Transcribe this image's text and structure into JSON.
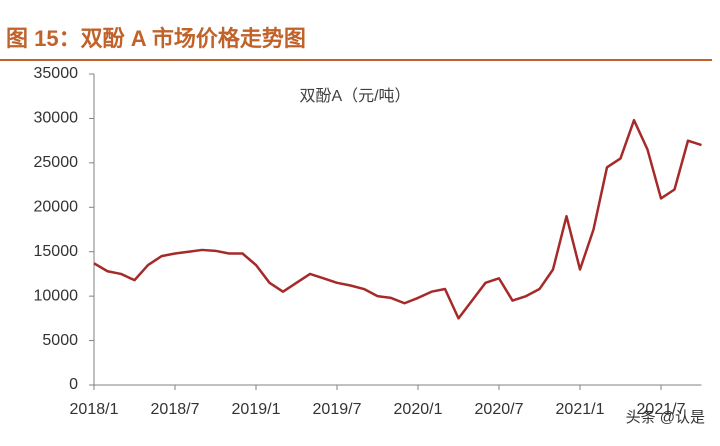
{
  "chart_data": {
    "type": "line",
    "title": "图 15：双酚 A 市场价格走势图",
    "subtitle": "双酚A（元/吨）",
    "watermark": "头条 @认是",
    "x": [
      "2018/1",
      "2018/2",
      "2018/3",
      "2018/4",
      "2018/5",
      "2018/6",
      "2018/7",
      "2018/8",
      "2018/9",
      "2018/10",
      "2018/11",
      "2018/12",
      "2019/1",
      "2019/2",
      "2019/3",
      "2019/4",
      "2019/5",
      "2019/6",
      "2019/7",
      "2019/8",
      "2019/9",
      "2019/10",
      "2019/11",
      "2019/12",
      "2020/1",
      "2020/2",
      "2020/3",
      "2020/4",
      "2020/5",
      "2020/6",
      "2020/7",
      "2020/8",
      "2020/9",
      "2020/10",
      "2020/11",
      "2020/12",
      "2021/1",
      "2021/2",
      "2021/3",
      "2021/4",
      "2021/5",
      "2021/6",
      "2021/7",
      "2021/8",
      "2021/9",
      "2021/10"
    ],
    "series": [
      {
        "name": "双酚A",
        "color": "#a52a2a",
        "values": [
          13700,
          12800,
          12500,
          11800,
          13500,
          14500,
          14800,
          15000,
          15200,
          15100,
          14800,
          14800,
          13500,
          11500,
          10500,
          11500,
          12500,
          12000,
          11500,
          11200,
          10800,
          10000,
          9800,
          9200,
          9800,
          10500,
          10800,
          7500,
          9500,
          11500,
          12000,
          9500,
          10000,
          10800,
          13000,
          19000,
          13000,
          17500,
          24500,
          25500,
          29800,
          26500,
          21000,
          22000,
          27500,
          27000
        ]
      }
    ],
    "xticks": [
      "2018/1",
      "2018/7",
      "2019/1",
      "2019/7",
      "2020/1",
      "2020/7",
      "2021/1",
      "2021/7"
    ],
    "ylim": [
      0,
      35000
    ],
    "yticks": [
      0,
      5000,
      10000,
      15000,
      20000,
      25000,
      30000,
      35000
    ]
  }
}
